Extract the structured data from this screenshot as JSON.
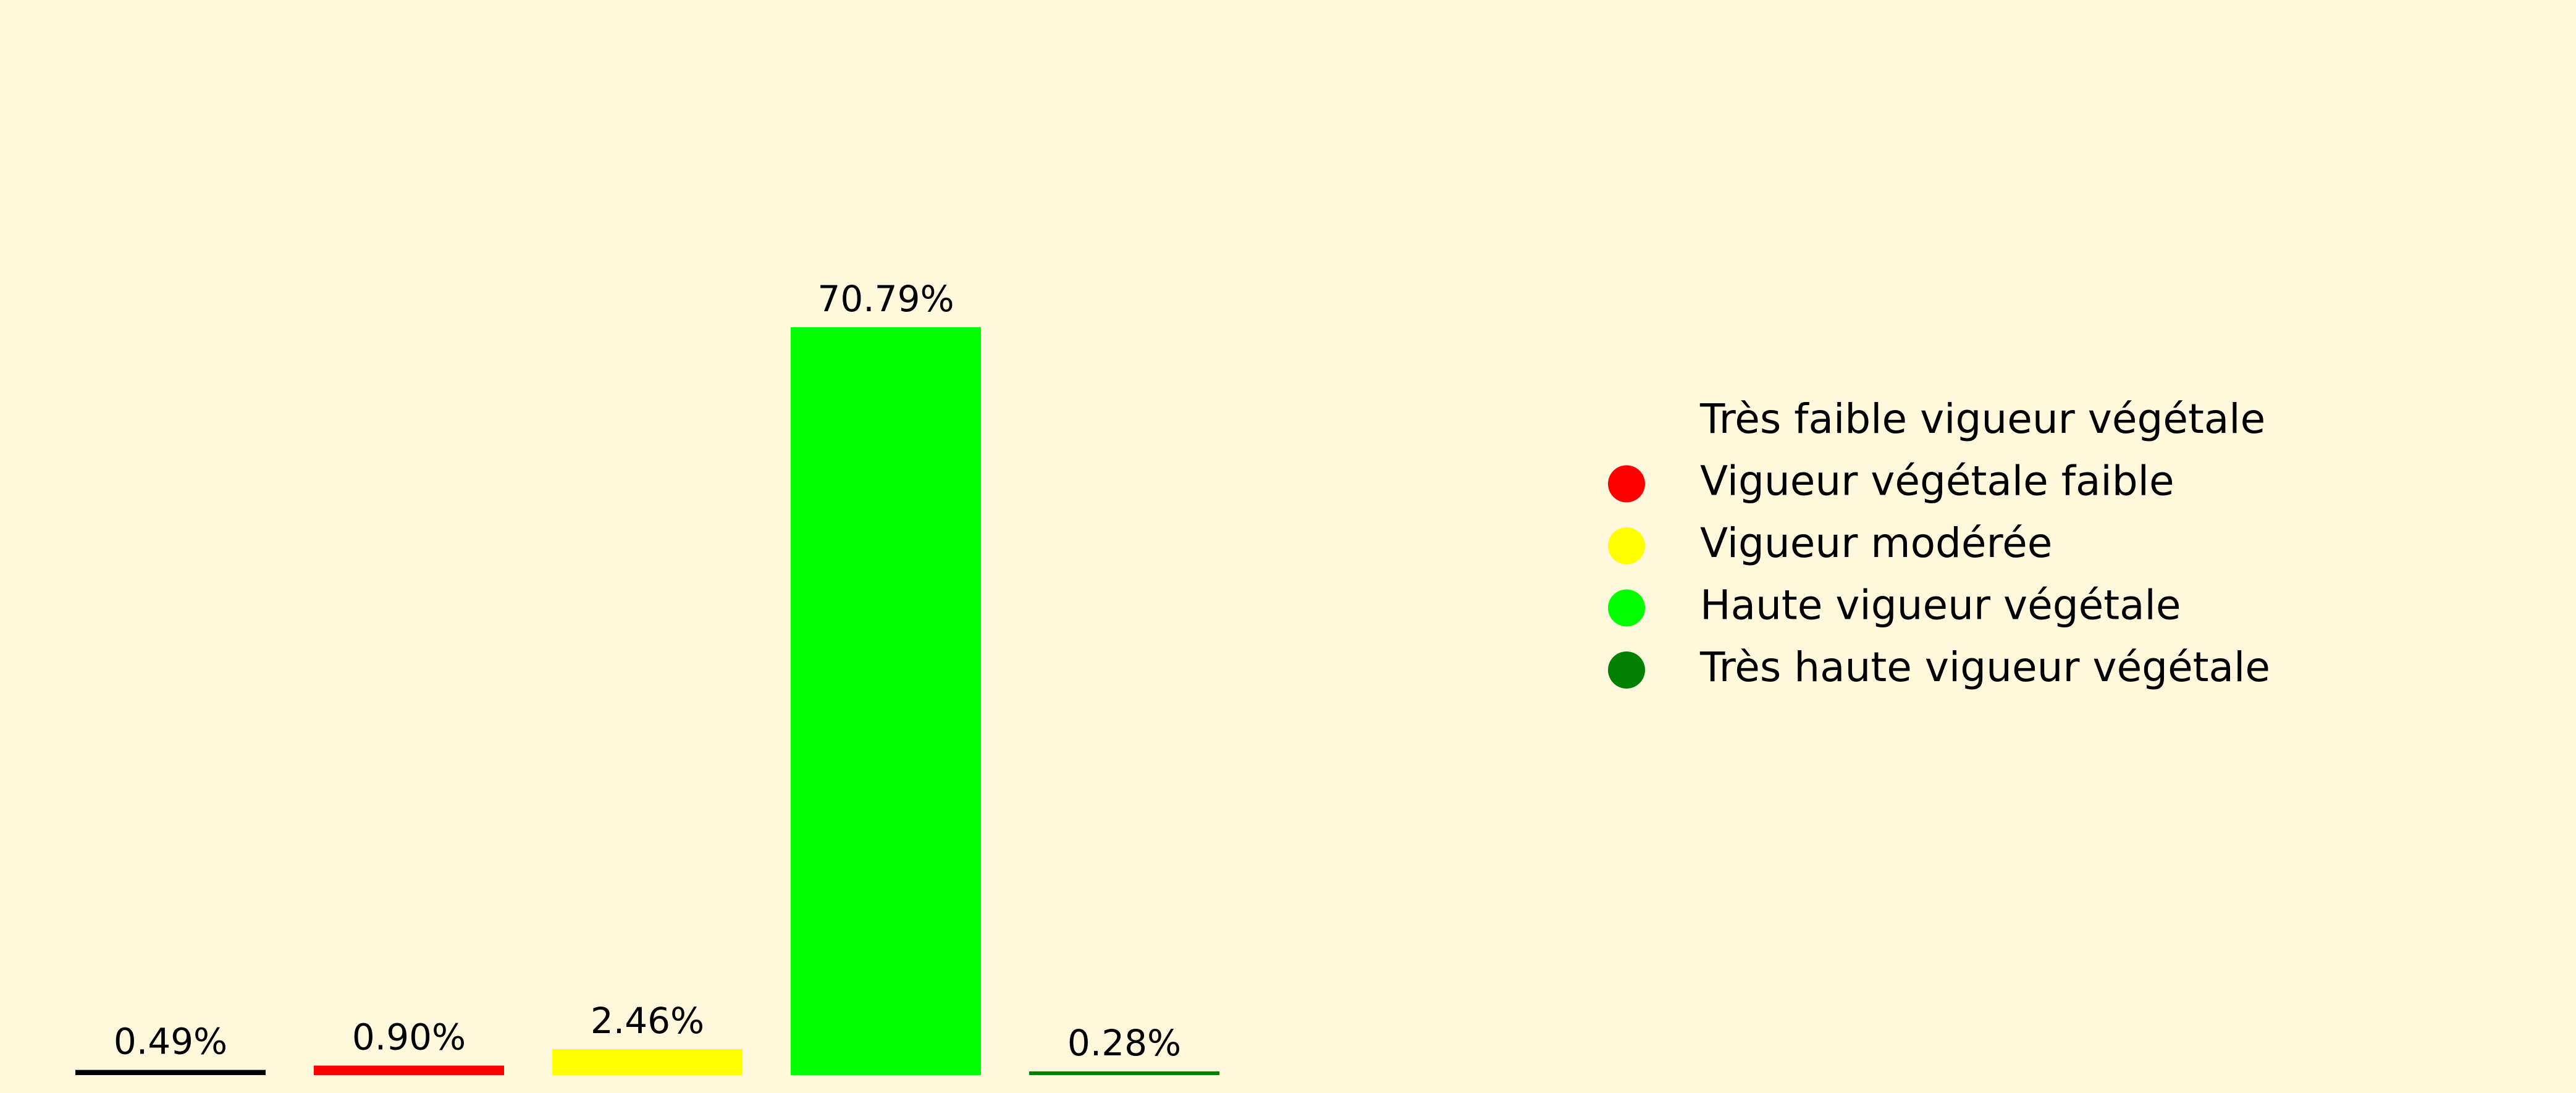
{
  "chart_data": {
    "type": "bar",
    "title": "",
    "xlabel": "",
    "ylabel": "",
    "ylim": [
      0,
      77
    ],
    "grid": false,
    "axes_visible": false,
    "legend_placement": "right",
    "categories": [
      "Très faible vigueur végétale",
      "Vigueur végétale faible",
      "Vigueur modérée",
      "Haute vigueur végétale",
      "Très haute vigueur végétale"
    ],
    "values": [
      0.49,
      0.9,
      2.46,
      70.79,
      0.28
    ],
    "value_labels": [
      "0.49%",
      "0.90%",
      "2.46%",
      "70.79%",
      "0.28%"
    ],
    "colors": [
      "#000000",
      "#FF0000",
      "#FFFF00",
      "#00FF00",
      "#008000"
    ],
    "legend": [
      {
        "label": "Très faible vigueur végétale",
        "color": "#000000",
        "marker": "none"
      },
      {
        "label": "Vigueur végétale faible",
        "color": "#FF0000",
        "marker": "circle"
      },
      {
        "label": "Vigueur modérée",
        "color": "#FFFF00",
        "marker": "circle"
      },
      {
        "label": "Haute vigueur végétale",
        "color": "#00FF00",
        "marker": "circle"
      },
      {
        "label": "Très haute vigueur végétale",
        "color": "#008000",
        "marker": "circle"
      }
    ]
  }
}
